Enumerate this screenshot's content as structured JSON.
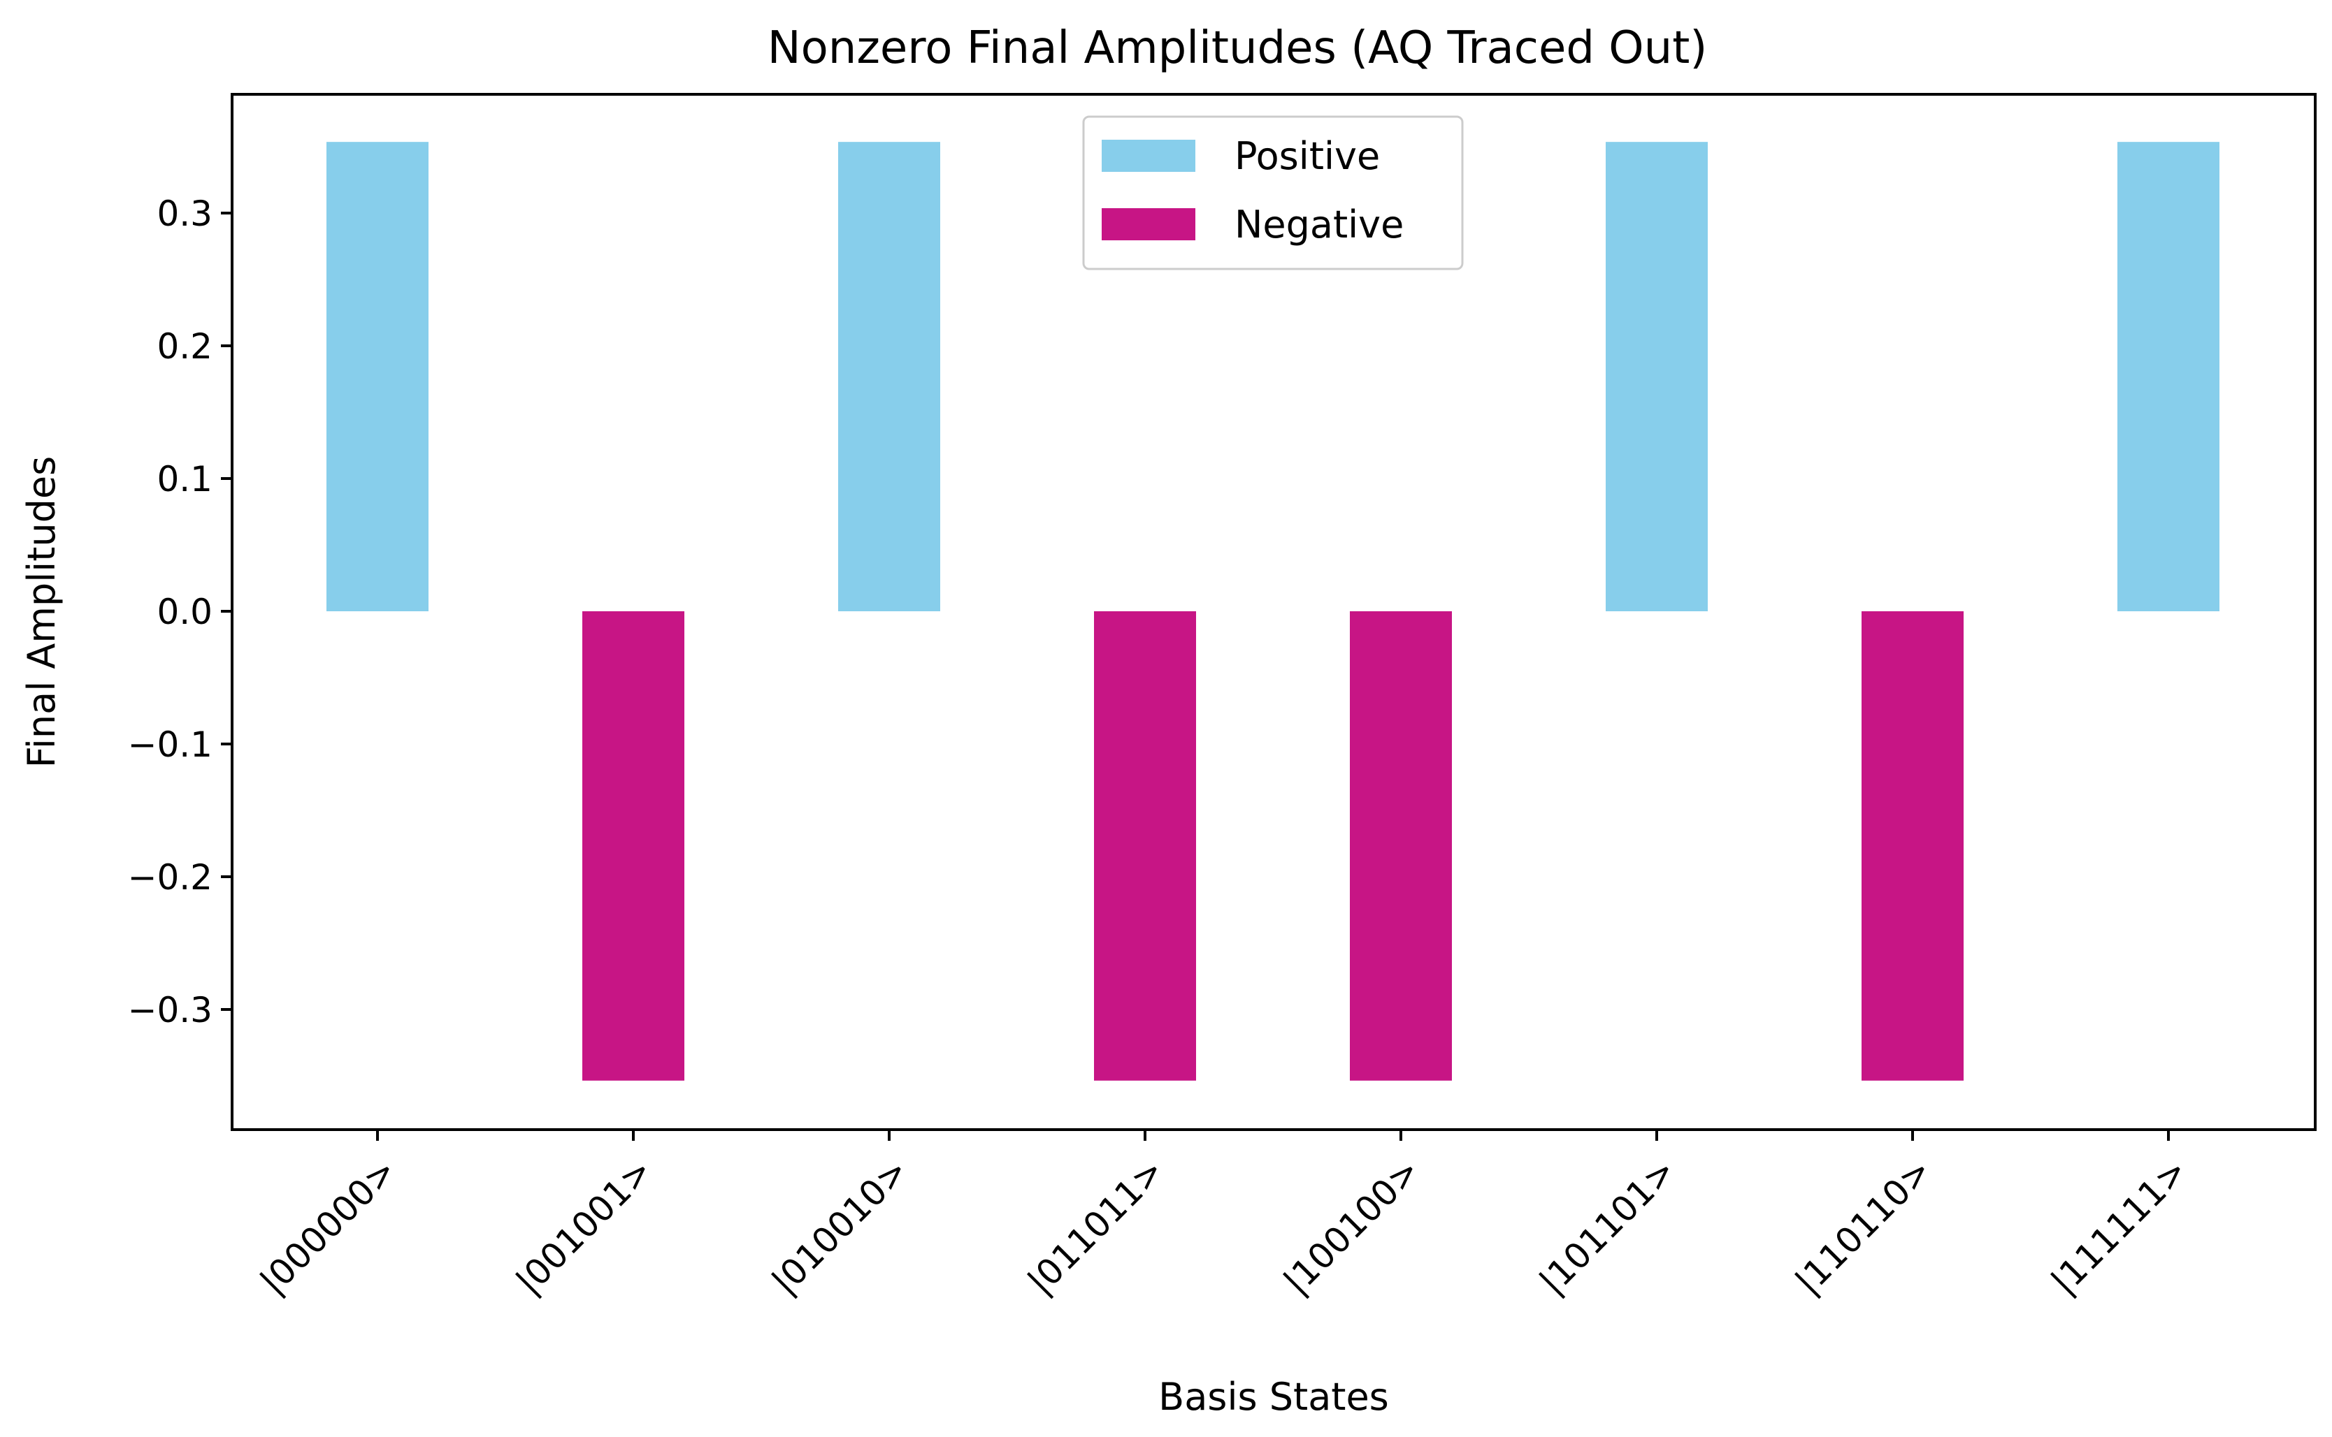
{
  "chart_data": {
    "type": "bar",
    "title": "Nonzero Final Amplitudes (AQ Traced Out)",
    "xlabel": "Basis States",
    "ylabel": "Final Amplitudes",
    "categories": [
      "|000000>",
      "|001001>",
      "|010010>",
      "|011011>",
      "|100100>",
      "|101101>",
      "|110110>",
      "|111111>"
    ],
    "values": [
      0.3536,
      -0.3536,
      0.3536,
      -0.3536,
      -0.3536,
      0.3536,
      -0.3536,
      0.3536
    ],
    "ylim": [
      -0.39,
      0.39
    ],
    "yticks": [
      0.3,
      0.2,
      0.1,
      0.0,
      -0.1,
      -0.2,
      -0.3
    ],
    "ytick_labels": [
      "0.3",
      "0.2",
      "0.1",
      "0.0",
      "−0.1",
      "−0.2",
      "−0.3"
    ],
    "grid": false,
    "legend": {
      "position": "upper-center",
      "entries": [
        {
          "label": "Positive",
          "color": "#87CEEB"
        },
        {
          "label": "Negative",
          "color": "#C71585"
        }
      ]
    }
  }
}
